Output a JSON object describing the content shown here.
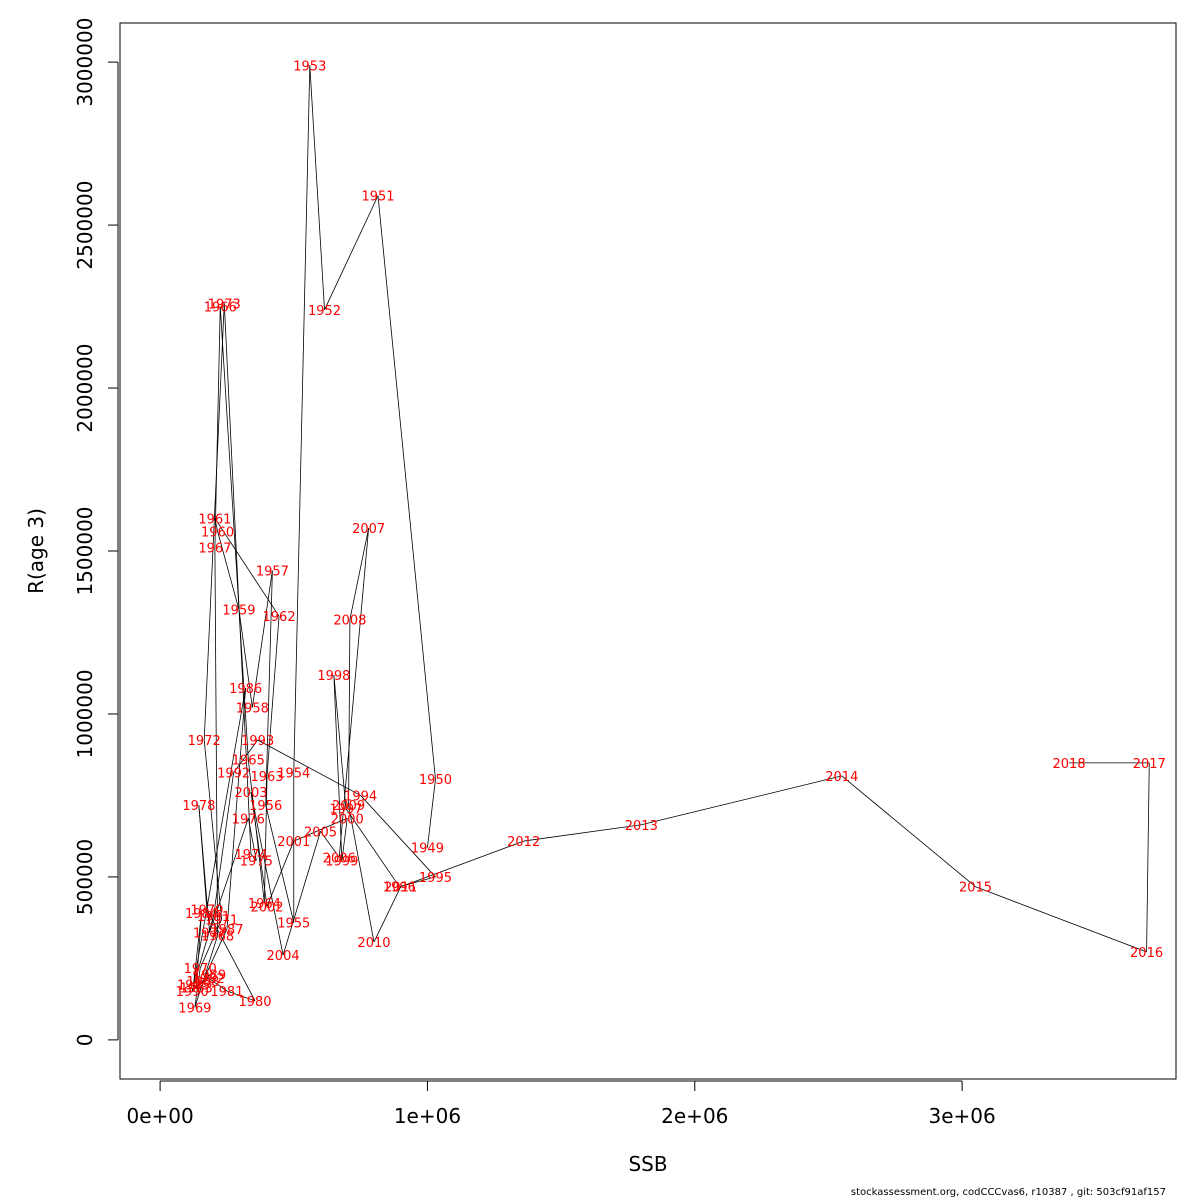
{
  "chart_data": {
    "type": "scatter",
    "connected": true,
    "xlabel": "SSB",
    "ylabel": "R(age 3)",
    "xlim": [
      -150000,
      3800000
    ],
    "ylim": [
      -120000,
      3120000
    ],
    "x_ticks": [
      0,
      1000000,
      2000000,
      3000000
    ],
    "x_tick_labels": [
      "0e+00",
      "1e+06",
      "2e+06",
      "3e+06"
    ],
    "y_ticks": [
      0,
      500000,
      1000000,
      1500000,
      2000000,
      2500000,
      3000000
    ],
    "y_tick_labels": [
      "0",
      "500000",
      "1000000",
      "1500000",
      "2000000",
      "2500000",
      "3000000"
    ],
    "line_color": "#000000",
    "label_color": "#ff0000",
    "grid": false,
    "points": [
      {
        "year": "1949",
        "ssb": 1000000,
        "r": 590000
      },
      {
        "year": "1950",
        "ssb": 1030000,
        "r": 800000
      },
      {
        "year": "1951",
        "ssb": 815000,
        "r": 2590000
      },
      {
        "year": "1952",
        "ssb": 615000,
        "r": 2240000
      },
      {
        "year": "1953",
        "ssb": 560000,
        "r": 2990000
      },
      {
        "year": "1954",
        "ssb": 500000,
        "r": 820000
      },
      {
        "year": "1955",
        "ssb": 500000,
        "r": 360000
      },
      {
        "year": "1956",
        "ssb": 395000,
        "r": 720000
      },
      {
        "year": "1957",
        "ssb": 420000,
        "r": 1440000
      },
      {
        "year": "1958",
        "ssb": 345000,
        "r": 1020000
      },
      {
        "year": "1959",
        "ssb": 295000,
        "r": 1320000
      },
      {
        "year": "1960",
        "ssb": 215000,
        "r": 1560000
      },
      {
        "year": "1961",
        "ssb": 205000,
        "r": 1600000
      },
      {
        "year": "1962",
        "ssb": 445000,
        "r": 1300000
      },
      {
        "year": "1963",
        "ssb": 400000,
        "r": 810000
      },
      {
        "year": "1964",
        "ssb": 390000,
        "r": 420000
      },
      {
        "year": "1965",
        "ssb": 330000,
        "r": 860000
      },
      {
        "year": "1966",
        "ssb": 225000,
        "r": 2250000
      },
      {
        "year": "1967",
        "ssb": 205000,
        "r": 1510000
      },
      {
        "year": "1968",
        "ssb": 215000,
        "r": 320000
      },
      {
        "year": "1969",
        "ssb": 130000,
        "r": 100000
      },
      {
        "year": "1970",
        "ssb": 150000,
        "r": 220000
      },
      {
        "year": "1971",
        "ssb": 230000,
        "r": 370000
      },
      {
        "year": "1972",
        "ssb": 165000,
        "r": 920000
      },
      {
        "year": "1973",
        "ssb": 240000,
        "r": 2260000
      },
      {
        "year": "1974",
        "ssb": 340000,
        "r": 570000
      },
      {
        "year": "1975",
        "ssb": 360000,
        "r": 550000
      },
      {
        "year": "1976",
        "ssb": 330000,
        "r": 680000
      },
      {
        "year": "1977",
        "ssb": 185000,
        "r": 330000
      },
      {
        "year": "1978",
        "ssb": 145000,
        "r": 720000
      },
      {
        "year": "1979",
        "ssb": 175000,
        "r": 400000
      },
      {
        "year": "1980",
        "ssb": 355000,
        "r": 120000
      },
      {
        "year": "1981",
        "ssb": 250000,
        "r": 150000
      },
      {
        "year": "1982",
        "ssb": 180000,
        "r": 190000
      },
      {
        "year": "1983",
        "ssb": 135000,
        "r": 160000
      },
      {
        "year": "1984",
        "ssb": 155000,
        "r": 390000
      },
      {
        "year": "1985",
        "ssb": 125000,
        "r": 170000
      },
      {
        "year": "1986",
        "ssb": 320000,
        "r": 1080000
      },
      {
        "year": "1987",
        "ssb": 250000,
        "r": 340000
      },
      {
        "year": "1988",
        "ssb": 160000,
        "r": 180000
      },
      {
        "year": "1989",
        "ssb": 185000,
        "r": 200000
      },
      {
        "year": "1990",
        "ssb": 120000,
        "r": 150000
      },
      {
        "year": "1991",
        "ssb": 200000,
        "r": 380000
      },
      {
        "year": "1992",
        "ssb": 275000,
        "r": 820000
      },
      {
        "year": "1993",
        "ssb": 365000,
        "r": 920000
      },
      {
        "year": "1994",
        "ssb": 750000,
        "r": 750000
      },
      {
        "year": "1995",
        "ssb": 1030000,
        "r": 500000
      },
      {
        "year": "1996",
        "ssb": 895000,
        "r": 470000
      },
      {
        "year": "1997",
        "ssb": 695000,
        "r": 710000
      },
      {
        "year": "1998",
        "ssb": 650000,
        "r": 1120000
      },
      {
        "year": "1999",
        "ssb": 680000,
        "r": 550000
      },
      {
        "year": "2000",
        "ssb": 700000,
        "r": 680000
      },
      {
        "year": "2001",
        "ssb": 500000,
        "r": 610000
      },
      {
        "year": "2002",
        "ssb": 400000,
        "r": 410000
      },
      {
        "year": "2003",
        "ssb": 340000,
        "r": 760000
      },
      {
        "year": "2004",
        "ssb": 460000,
        "r": 260000
      },
      {
        "year": "2005",
        "ssb": 600000,
        "r": 640000
      },
      {
        "year": "2006",
        "ssb": 670000,
        "r": 560000
      },
      {
        "year": "2007",
        "ssb": 780000,
        "r": 1570000
      },
      {
        "year": "2008",
        "ssb": 710000,
        "r": 1290000
      },
      {
        "year": "2009",
        "ssb": 705000,
        "r": 720000
      },
      {
        "year": "2010",
        "ssb": 800000,
        "r": 300000
      },
      {
        "year": "2011",
        "ssb": 900000,
        "r": 470000
      },
      {
        "year": "2012",
        "ssb": 1360000,
        "r": 610000
      },
      {
        "year": "2013",
        "ssb": 1800000,
        "r": 660000
      },
      {
        "year": "2014",
        "ssb": 2550000,
        "r": 810000
      },
      {
        "year": "2015",
        "ssb": 3050000,
        "r": 470000
      },
      {
        "year": "2016",
        "ssb": 3690000,
        "r": 270000
      },
      {
        "year": "2017",
        "ssb": 3700000,
        "r": 850000
      },
      {
        "year": "2018",
        "ssb": 3400000,
        "r": 850000
      }
    ]
  },
  "footer": "stockassessment.org, codCCCvas6, r10387 , git: 503cf91af157"
}
